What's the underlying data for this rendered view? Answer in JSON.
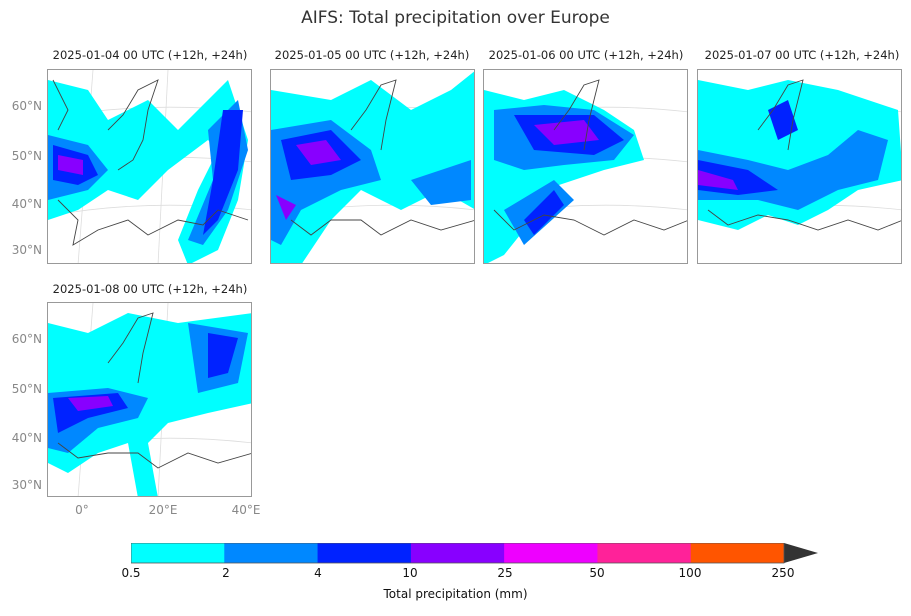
{
  "title": "AIFS: Total precipitation over Europe",
  "panels": [
    {
      "label": "2025-01-04 00 UTC (+12h, +24h)"
    },
    {
      "label": "2025-01-05 00 UTC (+12h, +24h)"
    },
    {
      "label": "2025-01-06 00 UTC (+12h, +24h)"
    },
    {
      "label": "2025-01-07 00 UTC (+12h, +24h)"
    },
    {
      "label": "2025-01-08 00 UTC (+12h, +24h)"
    }
  ],
  "lat_ticks": [
    "60°N",
    "50°N",
    "40°N",
    "30°N"
  ],
  "lon_ticks": [
    "0°",
    "20°E",
    "40°E"
  ],
  "colorbar": {
    "label": "Total precipitation (mm)",
    "levels": [
      "0.5",
      "2",
      "4",
      "10",
      "25",
      "50",
      "100",
      "250"
    ],
    "colors": [
      "#00ffff",
      "#0088ff",
      "#0022ff",
      "#8800ff",
      "#ee00ff",
      "#ff2299",
      "#ff5500"
    ],
    "extend_color": "#333333"
  },
  "chart_data": {
    "type": "heatmap",
    "title": "AIFS: Total precipitation over Europe",
    "variable": "Total precipitation",
    "units": "mm",
    "region": "Europe",
    "lat_range": [
      30,
      65
    ],
    "lon_range": [
      -8,
      42
    ],
    "levels": [
      0.5,
      2,
      4,
      10,
      25,
      50,
      100,
      250
    ],
    "extend": "max"
  }
}
